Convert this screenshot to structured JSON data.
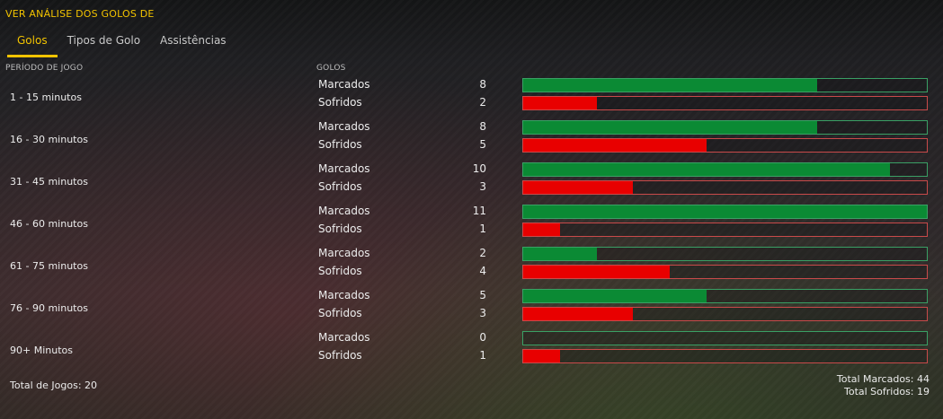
{
  "header": {
    "title": "VER ANÁLISE DOS GOLOS DE"
  },
  "tabs": [
    {
      "label": "Golos",
      "active": true
    },
    {
      "label": "Tipos de Golo",
      "active": false
    },
    {
      "label": "Assistências",
      "active": false
    }
  ],
  "columns": {
    "period": "PERÍODO DE JOGO",
    "goals": "GOLOS"
  },
  "colors": {
    "accent": "#f2c300",
    "scored": "#0b8a34",
    "conceded": "#e80000"
  },
  "chart_data": {
    "type": "bar",
    "orientation": "horizontal",
    "xlim": [
      0,
      11
    ],
    "categories": [
      "1 - 15 minutos",
      "16 - 30 minutos",
      "31 - 45 minutos",
      "46 - 60 minutos",
      "61 - 75 minutos",
      "76 - 90 minutos",
      "90+ Minutos"
    ],
    "series": [
      {
        "name": "Marcados",
        "values": [
          8,
          8,
          10,
          11,
          2,
          5,
          0
        ]
      },
      {
        "name": "Sofridos",
        "values": [
          2,
          5,
          3,
          1,
          4,
          3,
          1
        ]
      }
    ]
  },
  "footer": {
    "total_games": "Total de Jogos: 20",
    "total_scored": "Total Marcados: 44",
    "total_conceded": "Total Sofridos: 19"
  }
}
